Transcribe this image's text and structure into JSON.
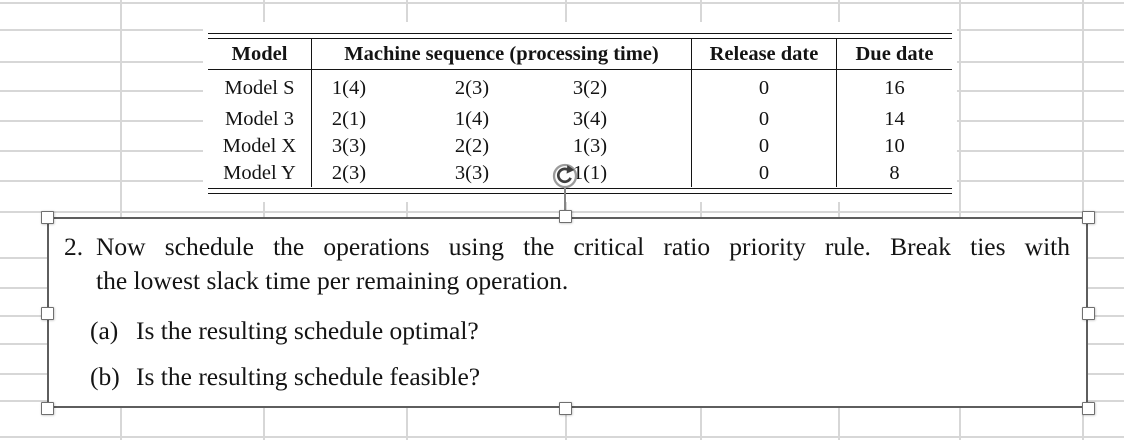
{
  "table": {
    "headers": {
      "model": "Model",
      "sequence": "Machine sequence (processing time)",
      "release": "Release date",
      "due": "Due date"
    },
    "rows": [
      {
        "model": "Model S",
        "seq1": "1(4)",
        "seq2": "2(3)",
        "seq3": "3(2)",
        "release": "0",
        "due": "16"
      },
      {
        "model": "Model 3",
        "seq1": "2(1)",
        "seq2": "1(4)",
        "seq3": "3(4)",
        "release": "0",
        "due": "14"
      },
      {
        "model": "Model X",
        "seq1": "3(3)",
        "seq2": "2(2)",
        "seq3": "1(3)",
        "release": "0",
        "due": "10"
      },
      {
        "model": "Model Y",
        "seq1": "2(3)",
        "seq2": "3(3)",
        "seq3": "1(1)",
        "release": "0",
        "due": "8"
      }
    ]
  },
  "question": {
    "number": "2.",
    "line1": "Now schedule the operations using the critical ratio priority rule.  Break ties with",
    "line2": "the lowest slack time per remaining operation.",
    "items": [
      {
        "label": "(a)",
        "text": "Is the resulting schedule optimal?"
      },
      {
        "label": "(b)",
        "text": "Is the resulting schedule feasible?"
      }
    ]
  },
  "icons": {
    "rotate_handle": "rotate-clockwise"
  },
  "colors": {
    "gridline": "#d7d7d7",
    "ink": "#141414",
    "selection_border": "#5e5e5e",
    "handle_border": "#6f6f6f"
  }
}
